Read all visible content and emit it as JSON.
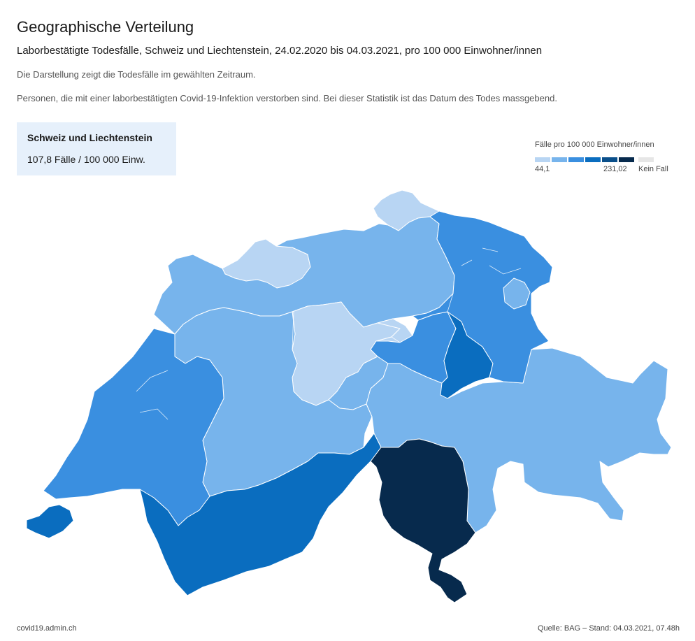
{
  "header": {
    "title": "Geographische Verteilung",
    "subtitle": "Laborbestätigte Todesfälle, Schweiz und Liechtenstein, 24.02.2020 bis 04.03.2021, pro 100 000 Einwohner/innen",
    "description_1": "Die Darstellung zeigt die Todesfälle im gewählten Zeitraum.",
    "description_2": "Personen, die mit einer laborbestätigten Covid-19-Infektion verstorben sind. Bei dieser Statistik ist das Datum des Todes massgebend."
  },
  "summary": {
    "title": "Schweiz und Liechtenstein",
    "value": "107,8 Fälle / 100 000 Einw."
  },
  "legend": {
    "title": "Fälle pro 100 000 Einwohner/innen",
    "min_label": "44,1",
    "max_label": "231,02",
    "no_case_label": "Kein Fall",
    "colors": [
      "#b8d5f3",
      "#77b4ec",
      "#3a8fe0",
      "#0a6dbf",
      "#0a4f8a",
      "#072a4d"
    ],
    "no_case_color": "#e6e6e6"
  },
  "map": {
    "class_colors": [
      "#b8d5f3",
      "#77b4ec",
      "#3a8fe0",
      "#0a6dbf",
      "#0a4f8a",
      "#072a4d"
    ]
  },
  "footer": {
    "source_site": "covid19.admin.ch",
    "source_note": "Quelle: BAG – Stand: 04.03.2021, 07.48h"
  }
}
